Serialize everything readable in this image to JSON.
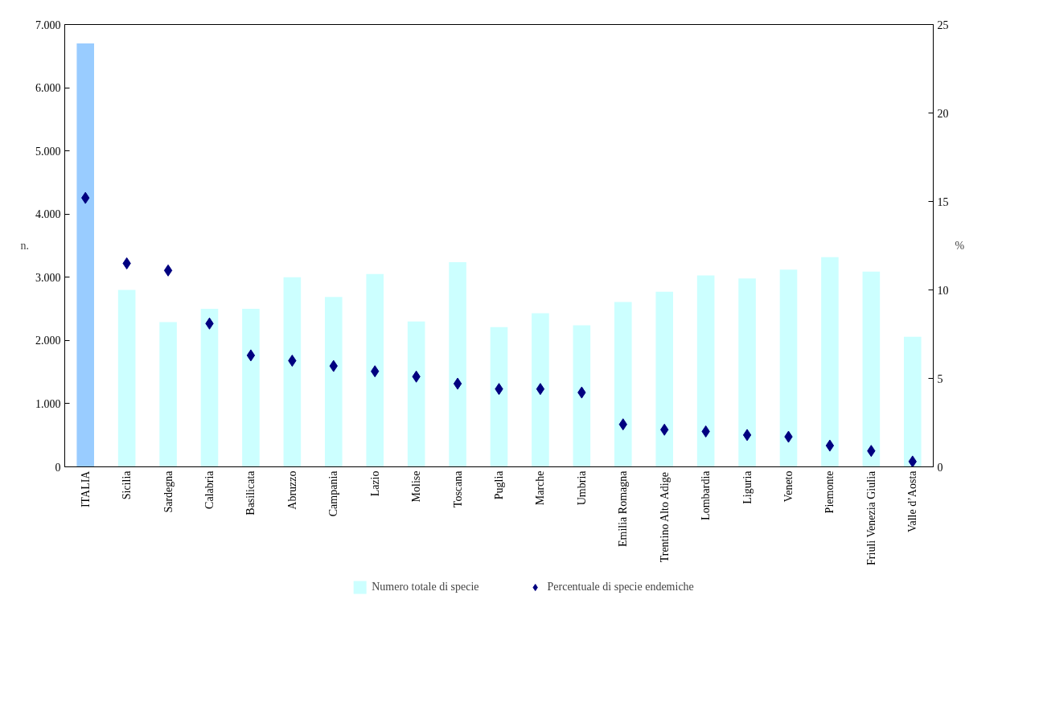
{
  "chart_data": {
    "type": "bar",
    "ylabel": "n.",
    "y2label": "%",
    "categories": [
      "ITALIA",
      "Sicilia",
      "Sardegna",
      "Calabria",
      "Basilicata",
      "Abruzzo",
      "Campania",
      "Lazio",
      "Molise",
      "Toscana",
      "Puglia",
      "Marche",
      "Umbria",
      "Emilia Romagna",
      "Trentino Alto Adige",
      "Lombardia",
      "Liguria",
      "Veneto",
      "Piemonte",
      "Friuli Venezia Giulia",
      "Valle d’Aosta"
    ],
    "series": [
      {
        "name": "Numero totale di specie",
        "color": "#ccffff",
        "colors": [
          "#99ccff",
          "#ccffff",
          "#ccffff",
          "#ccffff",
          "#ccffff",
          "#ccffff",
          "#ccffff",
          "#ccffff",
          "#ccffff",
          "#ccffff",
          "#ccffff",
          "#ccffff",
          "#ccffff",
          "#ccffff",
          "#ccffff",
          "#ccffff",
          "#ccffff",
          "#ccffff",
          "#ccffff",
          "#ccffff",
          "#ccffff"
        ],
        "values": [
          6700,
          2800,
          2290,
          2500,
          2500,
          3000,
          2690,
          3050,
          2300,
          3240,
          2210,
          2430,
          2240,
          2610,
          2770,
          3030,
          2980,
          3120,
          3320,
          3090,
          2060
        ]
      },
      {
        "name": "Percentuale di specie endemiche",
        "type": "scatter",
        "axis": "y2",
        "marker": "diamond",
        "color": "#000080",
        "values": [
          15.2,
          11.5,
          11.1,
          8.1,
          6.3,
          6.0,
          5.7,
          5.4,
          5.1,
          4.7,
          4.4,
          4.4,
          4.2,
          2.4,
          2.1,
          2.0,
          1.8,
          1.7,
          1.2,
          0.9,
          0.3
        ]
      }
    ],
    "ylim": [
      0,
      7000
    ],
    "yticks": [
      0,
      {
        "value": 1000,
        "label": "1.000"
      },
      {
        "value": 2000,
        "label": "2.000"
      },
      {
        "value": 3000,
        "label": "3.000"
      },
      {
        "value": 4000,
        "label": "4.000"
      },
      {
        "value": 5000,
        "label": "5.000"
      },
      {
        "value": 6000,
        "label": "6.000"
      },
      {
        "value": 7000,
        "label": "7.000"
      }
    ],
    "y2lim": [
      0,
      25
    ],
    "y2ticks": [
      0,
      5,
      10,
      15,
      20,
      25
    ],
    "grid": false,
    "legend": "bottom"
  }
}
